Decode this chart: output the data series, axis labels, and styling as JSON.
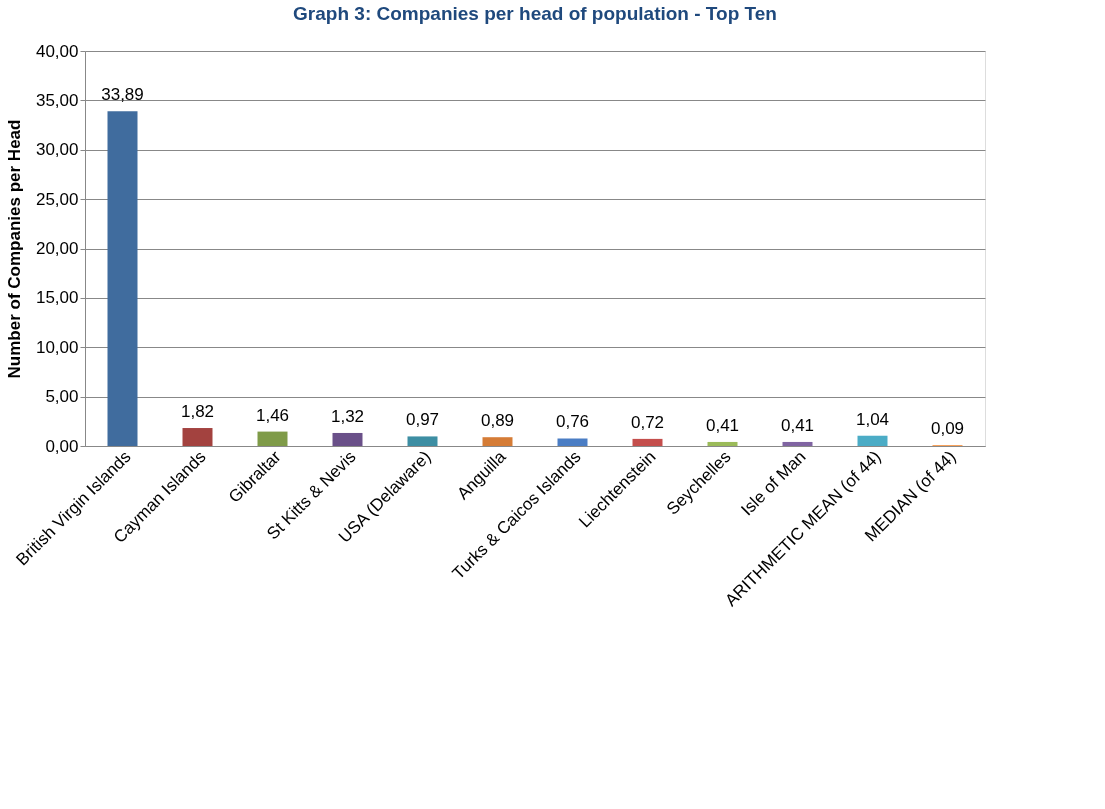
{
  "chart_data": {
    "type": "bar",
    "title": "Graph 3: Companies per head of population - Top Ten",
    "ylabel": "Number of Companies per Head",
    "categories": [
      "British Virgin Islands",
      "Cayman Islands",
      "Gibraltar",
      "St Kitts & Nevis",
      "USA (Delaware)",
      "Anguilla",
      "Turks & Caicos Islands",
      "Liechtenstein",
      "Seychelles",
      "Isle of Man",
      "ARITHMETIC MEAN (of 44)",
      "MEDIAN (of 44)"
    ],
    "values": [
      33.89,
      1.82,
      1.46,
      1.32,
      0.97,
      0.89,
      0.76,
      0.72,
      0.41,
      0.41,
      1.04,
      0.09
    ],
    "value_labels": [
      "33,89",
      "1,82",
      "1,46",
      "1,32",
      "0,97",
      "0,89",
      "0,76",
      "0,72",
      "0,41",
      "0,41",
      "1,04",
      "0,09"
    ],
    "colors": [
      "#406c9e",
      "#a3423f",
      "#7f9b48",
      "#6a5089",
      "#3d8ea3",
      "#d57c36",
      "#4a7dc4",
      "#c44e4c",
      "#9bbb59",
      "#8064a2",
      "#4bacc6",
      "#f79646"
    ],
    "ylim": [
      0,
      40
    ],
    "yticks": [
      {
        "value": 0,
        "label": "0,00"
      },
      {
        "value": 5,
        "label": "5,00"
      },
      {
        "value": 10,
        "label": "10,00"
      },
      {
        "value": 15,
        "label": "15,00"
      },
      {
        "value": 20,
        "label": "20,00"
      },
      {
        "value": 25,
        "label": "25,00"
      },
      {
        "value": 30,
        "label": "30,00"
      },
      {
        "value": 35,
        "label": "35,00"
      },
      {
        "value": 40,
        "label": "40,00"
      }
    ],
    "grid": "y"
  }
}
